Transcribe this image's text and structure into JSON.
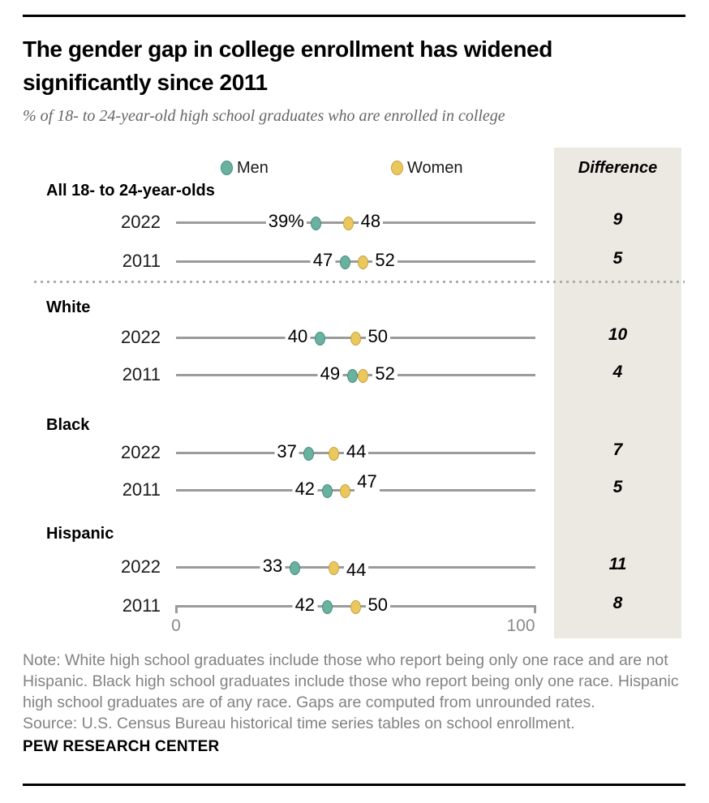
{
  "title": "The gender gap in college enrollment has widened significantly since 2011",
  "subtitle": "% of 18- to 24-year-old high school graduates who are enrolled in college",
  "legend": {
    "men": "Men",
    "women": "Women"
  },
  "difference_header": "Difference",
  "axis": {
    "min_label": "0",
    "max_label": "100"
  },
  "colors": {
    "men_fill": "#6BB1A0",
    "men_stroke": "#418E7B",
    "women_fill": "#EBC85E",
    "women_stroke": "#C8A03C",
    "line": "#9B9B9B",
    "difference_bg": "#ECE9E2",
    "subtitle_text": "#666666",
    "note_text": "#828282",
    "axis_text": "#8A8A8A",
    "dotted": "#ADADAD"
  },
  "chart_data": {
    "type": "scatter",
    "subtype": "dot-plot",
    "series": [
      "Men",
      "Women"
    ],
    "xlim": [
      0,
      100
    ],
    "grid": false,
    "legend_position": "top",
    "groups": [
      {
        "label": "All 18- to 24-year-olds",
        "rows": [
          {
            "year": "2022",
            "men": 39,
            "women": 48,
            "men_label": "39%",
            "women_label": "48",
            "difference": "9"
          },
          {
            "year": "2011",
            "men": 47,
            "women": 52,
            "men_label": "47",
            "women_label": "52",
            "difference": "5"
          }
        ]
      },
      {
        "label": "White",
        "rows": [
          {
            "year": "2022",
            "men": 40,
            "women": 50,
            "men_label": "40",
            "women_label": "50",
            "difference": "10"
          },
          {
            "year": "2011",
            "men": 49,
            "women": 52,
            "men_label": "49",
            "women_label": "52",
            "difference": "4"
          }
        ]
      },
      {
        "label": "Black",
        "rows": [
          {
            "year": "2022",
            "men": 37,
            "women": 44,
            "men_label": "37",
            "women_label": "44",
            "difference": "7"
          },
          {
            "year": "2011",
            "men": 42,
            "women": 47,
            "men_label": "42",
            "women_label": "47",
            "difference": "5",
            "women_label_dy": -9
          }
        ]
      },
      {
        "label": "Hispanic",
        "rows": [
          {
            "year": "2022",
            "men": 33,
            "women": 44,
            "men_label": "33",
            "women_label": "44",
            "difference": "11",
            "women_label_dy": 5
          },
          {
            "year": "2011",
            "men": 42,
            "women": 50,
            "men_label": "42",
            "women_label": "50",
            "difference": "8",
            "axis_row": true
          }
        ]
      }
    ]
  },
  "note": "Note: White high school graduates include those who report being only one race and are not Hispanic. Black high school graduates include those who report being only one race. Hispanic high school graduates are of any race. Gaps are computed from unrounded rates.",
  "source": "Source: U.S. Census Bureau historical time series tables on school enrollment.",
  "footer": "PEW RESEARCH CENTER"
}
